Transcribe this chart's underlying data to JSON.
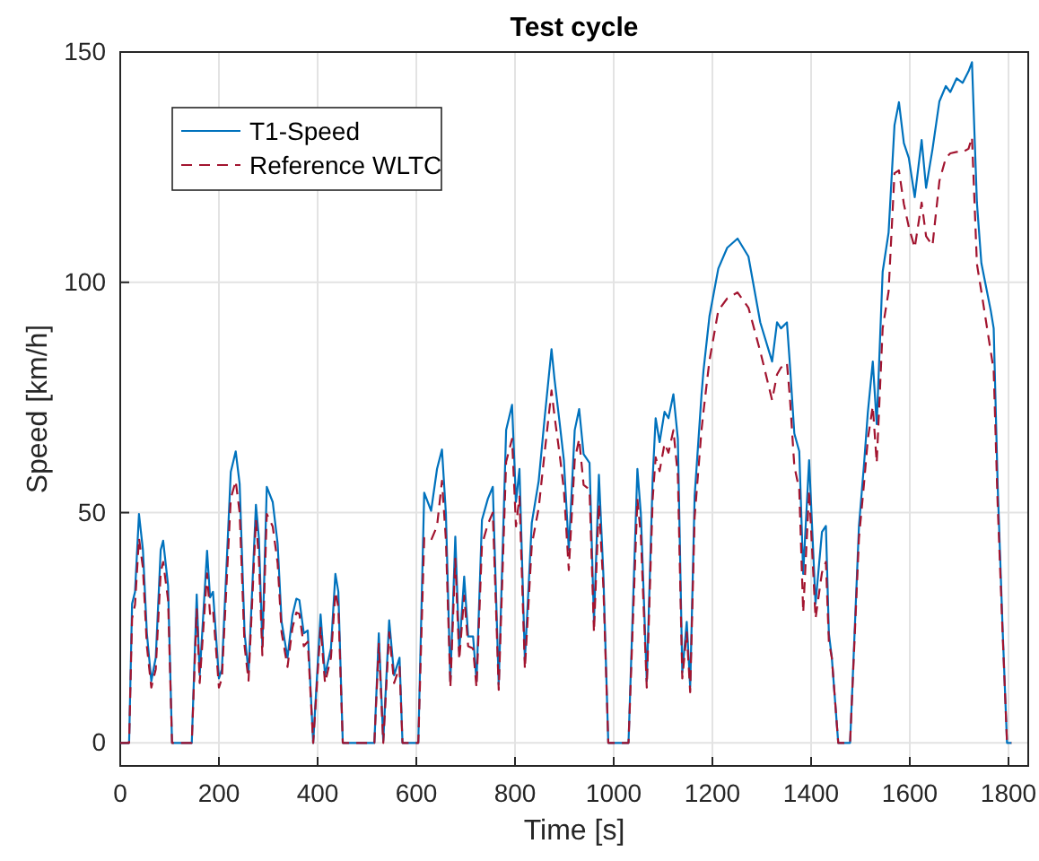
{
  "chart_data": {
    "type": "line",
    "title": "Test cycle",
    "xlabel": "Time [s]",
    "ylabel": "Speed [km/h]",
    "x": [
      0,
      18,
      24,
      30,
      38,
      46,
      54,
      63,
      72,
      82,
      87,
      97,
      105,
      145,
      155,
      161,
      176,
      182,
      188,
      200,
      206,
      224,
      234,
      242,
      252,
      260,
      275,
      281,
      288,
      297,
      309,
      319,
      327,
      339,
      349,
      357,
      363,
      372,
      380,
      391,
      406,
      415,
      427,
      436,
      442,
      451,
      515,
      524,
      533,
      545,
      555,
      566,
      572,
      604,
      616,
      630,
      642,
      652,
      660,
      669,
      679,
      687,
      697,
      705,
      715,
      722,
      733,
      745,
      755,
      767,
      782,
      794,
      802,
      809,
      820,
      834,
      848,
      860,
      874,
      880,
      890,
      899,
      909,
      921,
      930,
      939,
      951,
      960,
      970,
      979,
      989,
      1030,
      1048,
      1055,
      1067,
      1079,
      1085,
      1093,
      1103,
      1111,
      1121,
      1130,
      1139,
      1148,
      1155,
      1164,
      1178,
      1182,
      1194,
      1212,
      1230,
      1251,
      1273,
      1297,
      1321,
      1331,
      1339,
      1351,
      1357,
      1366,
      1376,
      1384,
      1396,
      1409,
      1422,
      1430,
      1436,
      1442,
      1455,
      1479,
      1497,
      1507,
      1515,
      1525,
      1533,
      1545,
      1557,
      1569,
      1578,
      1588,
      1598,
      1610,
      1624,
      1633,
      1646,
      1660,
      1673,
      1682,
      1695,
      1707,
      1719,
      1726,
      1736,
      1745,
      1764,
      1770,
      1778,
      1788,
      1797,
      1806
    ],
    "series": [
      {
        "name": "T1-Speed",
        "color": "#0072bd",
        "line_style": "solid",
        "values": [
          0,
          0,
          30.2,
          32.8,
          49.7,
          41.9,
          23.8,
          13.4,
          18.5,
          41.9,
          43.9,
          34.1,
          0,
          0,
          32.2,
          14.7,
          41.7,
          31.6,
          32.8,
          14,
          16,
          58.8,
          63.3,
          56.2,
          23.8,
          15.3,
          51.7,
          44.5,
          21.2,
          55.6,
          52.3,
          43.2,
          26.3,
          18.5,
          27.7,
          31.3,
          31,
          23.8,
          24.4,
          0,
          27.9,
          14.7,
          20.5,
          36.7,
          32.8,
          0,
          0,
          23.8,
          0.4,
          26.6,
          14.7,
          18.5,
          0,
          0,
          54.3,
          50.4,
          59.5,
          63.7,
          49.7,
          13.4,
          44.8,
          19.9,
          36.1,
          23.1,
          23.1,
          13.4,
          48.4,
          53,
          55.6,
          12.7,
          67.9,
          73.4,
          52.3,
          59.5,
          17.9,
          47.8,
          56.9,
          70.5,
          85.5,
          79,
          69.9,
          61.4,
          41.9,
          67.9,
          72.5,
          62.7,
          60.8,
          26.3,
          58.2,
          36.7,
          0,
          0,
          59.5,
          49.7,
          13.4,
          57.5,
          70.5,
          65.3,
          71.9,
          70.5,
          75.7,
          66,
          15.3,
          26.3,
          12.1,
          53.6,
          75.7,
          80.9,
          92.6,
          103,
          107.5,
          109.5,
          105.6,
          91.3,
          82.8,
          91.3,
          90,
          91.3,
          82.2,
          67.2,
          63.3,
          36.7,
          61.4,
          30.2,
          45.8,
          47.1,
          23.8,
          18.5,
          0,
          0,
          47.1,
          60.1,
          71.8,
          82.8,
          69.2,
          102.3,
          110.8,
          134.1,
          139.1,
          130.2,
          127,
          118.5,
          130.9,
          120.5,
          128.9,
          139.3,
          142.6,
          141.3,
          144.3,
          143.3,
          145.8,
          147.8,
          117.3,
          104.2,
          93.9,
          90,
          56.2,
          25,
          0,
          0
        ]
      },
      {
        "name": "Reference WLTC",
        "color": "#a2142f",
        "line_style": "dashed",
        "values": [
          0,
          0,
          27,
          30,
          44.5,
          38,
          21,
          12,
          16,
          37,
          39.3,
          31,
          0,
          0,
          29,
          13,
          36.8,
          28,
          29,
          12,
          14,
          53,
          56.9,
          50,
          21,
          13.5,
          48.4,
          40,
          19,
          49.7,
          47,
          39,
          24,
          16.5,
          25,
          28.3,
          28,
          21,
          22,
          0,
          25,
          13,
          18.5,
          32.8,
          29.5,
          0,
          0,
          21.5,
          0,
          24,
          13,
          16.5,
          0,
          0,
          44.5,
          44,
          47.1,
          56.9,
          44,
          12,
          40,
          18,
          32,
          21,
          20.5,
          12,
          43,
          47.5,
          50,
          11.5,
          61,
          66,
          47,
          53.5,
          16,
          43,
          51,
          63,
          76.5,
          71,
          63,
          55,
          37.5,
          61.4,
          66,
          56,
          55,
          24,
          52,
          34,
          0,
          0,
          53,
          45,
          12,
          53,
          62,
          59,
          65,
          63,
          67.9,
          58,
          14,
          24,
          11,
          49,
          68,
          72,
          83,
          93.9,
          96.5,
          97.8,
          94.5,
          85,
          74.4,
          80,
          81.5,
          82.5,
          75,
          60.1,
          55,
          28.3,
          54.9,
          27,
          37,
          39.3,
          22,
          18.5,
          0,
          0,
          44.5,
          56,
          66,
          73.1,
          60.8,
          90,
          98,
          123.7,
          124.3,
          117,
          112,
          107.5,
          117.3,
          110,
          108,
          122,
          127,
          128,
          128.3,
          128.3,
          129,
          131.5,
          104,
          98,
          85,
          80.9,
          52,
          24,
          0,
          0
        ]
      }
    ],
    "xlim": [
      0,
      1840
    ],
    "ylim": [
      -5,
      150
    ],
    "xticks": [
      0,
      200,
      400,
      600,
      800,
      1000,
      1200,
      1400,
      1600,
      1800
    ],
    "yticks": [
      0,
      50,
      100,
      150
    ],
    "grid": true,
    "legend": "top left"
  }
}
